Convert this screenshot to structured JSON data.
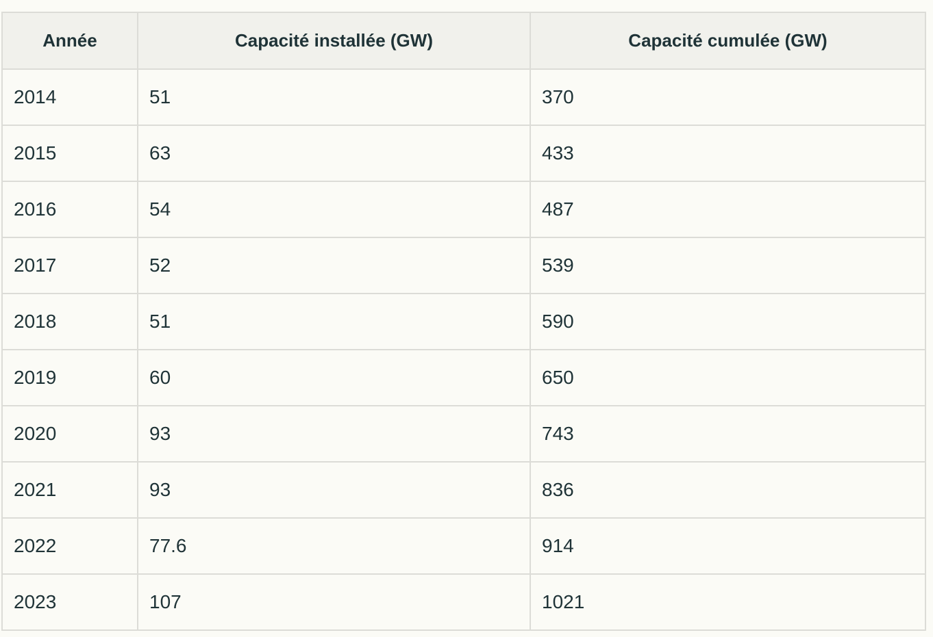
{
  "table": {
    "headers": [
      "Année",
      "Capacité installée (GW)",
      "Capacité cumulée (GW)"
    ],
    "rows": [
      [
        "2014",
        "51",
        "370"
      ],
      [
        "2015",
        "63",
        "433"
      ],
      [
        "2016",
        "54",
        "487"
      ],
      [
        "2017",
        "52",
        "539"
      ],
      [
        "2018",
        "51",
        "590"
      ],
      [
        "2019",
        "60",
        "650"
      ],
      [
        "2020",
        "93",
        "743"
      ],
      [
        "2021",
        "93",
        "836"
      ],
      [
        "2022",
        "77.6",
        "914"
      ],
      [
        "2023",
        "107",
        "1021"
      ]
    ]
  }
}
